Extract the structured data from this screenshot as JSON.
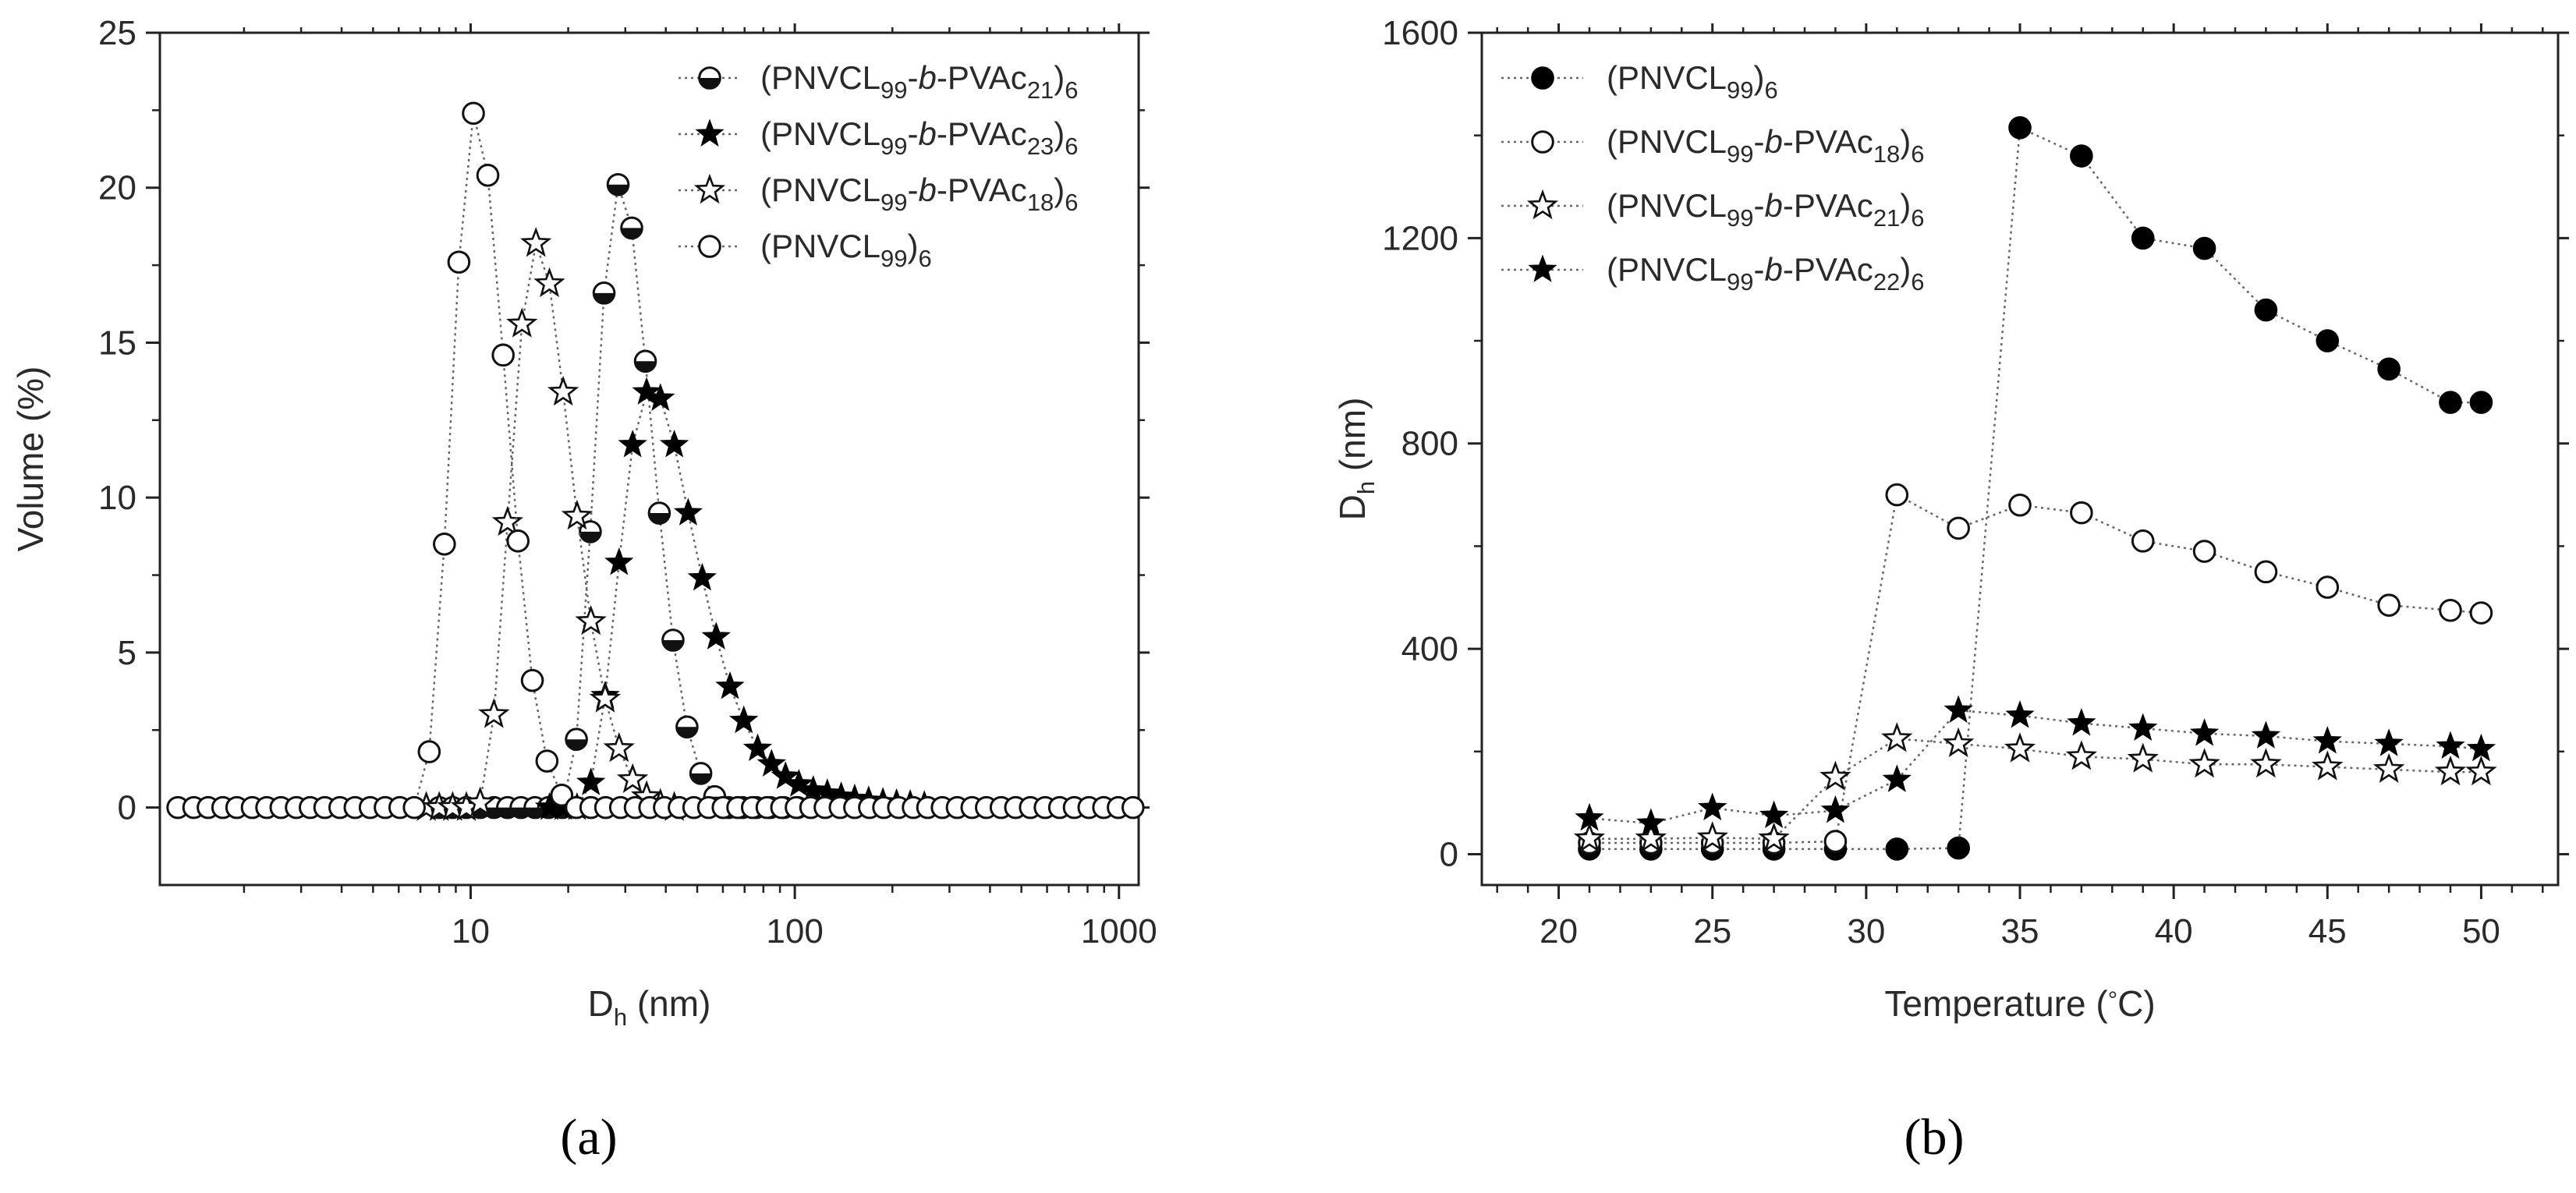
{
  "chart_data": [
    {
      "panel_label": "(a)",
      "type": "scatter",
      "line_style": "dotted",
      "x_scale": "log",
      "xlim": [
        1.1,
        1150
      ],
      "ylim": [
        -2.5,
        25
      ],
      "xlabel": {
        "main": "D",
        "sub": "h",
        "rest": " (nm)"
      },
      "ylabel": "Volume (%)",
      "x_ticks": [
        10,
        100,
        1000
      ],
      "x_tick_labels": [
        "10",
        "100",
        "1000"
      ],
      "y_ticks": [
        0,
        5,
        10,
        15,
        20,
        25
      ],
      "y_tick_labels": [
        "0",
        "5",
        "10",
        "15",
        "20",
        "25"
      ],
      "legend_position": "top-right",
      "series": [
        {
          "name": "(PNVCL99-b-PVAc21)6",
          "legend": {
            "a": "(PNVCL",
            "b": "99",
            "c": "-",
            "d": "b",
            "e": "-PVAc",
            "f": "21",
            "g": ")",
            "h": "6"
          },
          "marker": "half-filled-circle",
          "points": [
            [
              8,
              0
            ],
            [
              8.8,
              0
            ],
            [
              9.7,
              0
            ],
            [
              10.7,
              0
            ],
            [
              11.8,
              0
            ],
            [
              13,
              0
            ],
            [
              14.3,
              0
            ],
            [
              15.8,
              0
            ],
            [
              17.4,
              0
            ],
            [
              19.2,
              0
            ],
            [
              21.2,
              2.2
            ],
            [
              23.4,
              8.9
            ],
            [
              25.8,
              16.6
            ],
            [
              28.5,
              20.1
            ],
            [
              31.4,
              18.7
            ],
            [
              34.6,
              14.4
            ],
            [
              38.2,
              9.5
            ],
            [
              42.1,
              5.4
            ],
            [
              46.5,
              2.6
            ],
            [
              51.3,
              1.1
            ],
            [
              56.6,
              0.35
            ],
            [
              62.4,
              0
            ],
            [
              68.9,
              0
            ],
            [
              76,
              0
            ],
            [
              84,
              0
            ],
            [
              92.5,
              0
            ],
            [
              102,
              0
            ]
          ]
        },
        {
          "name": "(PNVCL99-b-PVAc23)6",
          "legend": {
            "a": "(PNVCL",
            "b": "99",
            "c": "-",
            "d": "b",
            "e": "-PVAc",
            "f": "23",
            "g": ")",
            "h": "6"
          },
          "marker": "filled-star",
          "points": [
            [
              17.5,
              0
            ],
            [
              19.3,
              0
            ],
            [
              21.3,
              0
            ],
            [
              23.5,
              0.8
            ],
            [
              26,
              3.6
            ],
            [
              28.7,
              7.9
            ],
            [
              31.6,
              11.7
            ],
            [
              34.9,
              13.4
            ],
            [
              38.5,
              13.2
            ],
            [
              42.5,
              11.7
            ],
            [
              46.9,
              9.5
            ],
            [
              51.8,
              7.4
            ],
            [
              57.2,
              5.5
            ],
            [
              63.1,
              3.9
            ],
            [
              69.6,
              2.8
            ],
            [
              76.8,
              1.9
            ],
            [
              84.8,
              1.4
            ],
            [
              93.6,
              1
            ],
            [
              103,
              0.75
            ],
            [
              114,
              0.55
            ],
            [
              126,
              0.45
            ],
            [
              139,
              0.35
            ],
            [
              153,
              0.28
            ],
            [
              169,
              0.22
            ],
            [
              187,
              0.17
            ],
            [
              206,
              0.13
            ],
            [
              227,
              0.1
            ],
            [
              251,
              0.07
            ]
          ]
        },
        {
          "name": "(PNVCL99-b-PVAc18)6",
          "legend": {
            "a": "(PNVCL",
            "b": "99",
            "c": "-",
            "d": "b",
            "e": "-PVAc",
            "f": "18",
            "g": ")",
            "h": "6"
          },
          "marker": "open-star",
          "points": [
            [
              7.3,
              0
            ],
            [
              8,
              0
            ],
            [
              8.8,
              0
            ],
            [
              9.7,
              0
            ],
            [
              10.7,
              0.15
            ],
            [
              11.8,
              3
            ],
            [
              13,
              9.2
            ],
            [
              14.4,
              15.6
            ],
            [
              15.9,
              18.2
            ],
            [
              17.5,
              16.9
            ],
            [
              19.3,
              13.4
            ],
            [
              21.3,
              9.4
            ],
            [
              23.5,
              6
            ],
            [
              26,
              3.5
            ],
            [
              28.7,
              1.9
            ],
            [
              31.6,
              0.9
            ],
            [
              34.9,
              0.35
            ],
            [
              38.5,
              0.1
            ],
            [
              42.5,
              0
            ]
          ]
        },
        {
          "name": "(PNVCL99)6",
          "legend": {
            "a": "(PNVCL",
            "b": "99",
            "c": ")",
            "d": "",
            "e": "",
            "f": "",
            "g": "",
            "h": "6"
          },
          "marker": "open-circle",
          "points": [
            [
              1.25,
              0
            ],
            [
              1.4,
              0
            ],
            [
              1.55,
              0
            ],
            [
              1.72,
              0
            ],
            [
              1.9,
              0
            ],
            [
              2.12,
              0
            ],
            [
              2.35,
              0
            ],
            [
              2.6,
              0
            ],
            [
              2.9,
              0
            ],
            [
              3.2,
              0
            ],
            [
              3.55,
              0
            ],
            [
              3.95,
              0
            ],
            [
              4.4,
              0
            ],
            [
              4.9,
              0
            ],
            [
              5.45,
              0
            ],
            [
              6.05,
              0
            ],
            [
              6.7,
              0
            ],
            [
              7.45,
              1.8
            ],
            [
              8.3,
              8.5
            ],
            [
              9.2,
              17.6
            ],
            [
              10.2,
              22.4
            ],
            [
              11.3,
              20.4
            ],
            [
              12.6,
              14.6
            ],
            [
              14,
              8.6
            ],
            [
              15.5,
              4.1
            ],
            [
              17.2,
              1.5
            ],
            [
              19.1,
              0.4
            ],
            [
              21.2,
              0
            ],
            [
              23.5,
              0
            ],
            [
              26.1,
              0
            ],
            [
              29,
              0
            ],
            [
              32.2,
              0
            ],
            [
              35.7,
              0
            ],
            [
              39.6,
              0
            ],
            [
              44,
              0
            ],
            [
              48.8,
              0
            ],
            [
              54.2,
              0
            ],
            [
              60.1,
              0
            ],
            [
              66.7,
              0
            ],
            [
              74,
              0
            ],
            [
              82.1,
              0
            ],
            [
              91.1,
              0
            ],
            [
              101,
              0
            ],
            [
              112,
              0
            ],
            [
              124,
              0
            ],
            [
              138,
              0
            ],
            [
              153,
              0
            ],
            [
              170,
              0
            ],
            [
              188,
              0
            ],
            [
              209,
              0
            ],
            [
              232,
              0
            ],
            [
              257,
              0
            ],
            [
              285,
              0
            ],
            [
              317,
              0
            ],
            [
              352,
              0
            ],
            [
              390,
              0
            ],
            [
              433,
              0
            ],
            [
              480,
              0
            ],
            [
              533,
              0
            ],
            [
              592,
              0
            ],
            [
              656,
              0
            ],
            [
              728,
              0
            ],
            [
              808,
              0
            ],
            [
              897,
              0
            ],
            [
              995,
              0
            ],
            [
              1105,
              0
            ]
          ]
        }
      ]
    },
    {
      "panel_label": "(b)",
      "type": "scatter",
      "line_style": "dotted",
      "x_scale": "linear",
      "xlim": [
        17.5,
        52.5
      ],
      "ylim": [
        -60,
        1600
      ],
      "xlabel": {
        "main": "Temperature (",
        "degree": "°",
        "rest": "C)"
      },
      "ylabel": {
        "main": "D",
        "sub": "h",
        "rest": " (nm)"
      },
      "x_ticks": [
        20,
        25,
        30,
        35,
        40,
        45,
        50
      ],
      "x_tick_labels": [
        "20",
        "25",
        "30",
        "35",
        "40",
        "45",
        "50"
      ],
      "y_ticks": [
        0,
        400,
        800,
        1200,
        1600
      ],
      "y_tick_labels": [
        "0",
        "400",
        "800",
        "1200",
        "1600"
      ],
      "legend_position": "top-left",
      "series": [
        {
          "name": "(PNVCL99)6",
          "legend": {
            "a": "(PNVCL",
            "b": "99",
            "c": ")",
            "d": "",
            "e": "",
            "f": "",
            "g": "",
            "h": "6"
          },
          "marker": "filled-circle",
          "points": [
            [
              21,
              10
            ],
            [
              23,
              10
            ],
            [
              25,
              10
            ],
            [
              27,
              10
            ],
            [
              29,
              10
            ],
            [
              31,
              10
            ],
            [
              33,
              12
            ],
            [
              35,
              1415
            ],
            [
              37,
              1360
            ],
            [
              39,
              1200
            ],
            [
              41,
              1180
            ],
            [
              43,
              1060
            ],
            [
              45,
              1000
            ],
            [
              47,
              945
            ],
            [
              49,
              880
            ],
            [
              50,
              880
            ]
          ]
        },
        {
          "name": "(PNVCL99-b-PVAc18)6",
          "legend": {
            "a": "(PNVCL",
            "b": "99",
            "c": "-",
            "d": "b",
            "e": "-PVAc",
            "f": "18",
            "g": ")",
            "h": "6"
          },
          "marker": "open-circle",
          "points": [
            [
              21,
              22
            ],
            [
              23,
              22
            ],
            [
              25,
              22
            ],
            [
              27,
              22
            ],
            [
              29,
              25
            ],
            [
              31,
              700
            ],
            [
              33,
              635
            ],
            [
              35,
              680
            ],
            [
              37,
              665
            ],
            [
              39,
              610
            ],
            [
              41,
              590
            ],
            [
              43,
              550
            ],
            [
              45,
              520
            ],
            [
              47,
              485
            ],
            [
              49,
              475
            ],
            [
              50,
              470
            ]
          ]
        },
        {
          "name": "(PNVCL99-b-PVAc21)6",
          "legend": {
            "a": "(PNVCL",
            "b": "99",
            "c": "-",
            "d": "b",
            "e": "-PVAc",
            "f": "21",
            "g": ")",
            "h": "6"
          },
          "marker": "open-star",
          "points": [
            [
              21,
              30
            ],
            [
              23,
              30
            ],
            [
              25,
              32
            ],
            [
              27,
              30
            ],
            [
              29,
              150
            ],
            [
              31,
              225
            ],
            [
              33,
              215
            ],
            [
              35,
              205
            ],
            [
              37,
              190
            ],
            [
              39,
              185
            ],
            [
              41,
              175
            ],
            [
              43,
              175
            ],
            [
              45,
              170
            ],
            [
              47,
              165
            ],
            [
              49,
              160
            ],
            [
              50,
              160
            ]
          ]
        },
        {
          "name": "(PNVCL99-b-PVAc22)6",
          "legend": {
            "a": "(PNVCL",
            "b": "99",
            "c": "-",
            "d": "b",
            "e": "-PVAc",
            "f": "22",
            "g": ")",
            "h": "6"
          },
          "marker": "filled-star",
          "points": [
            [
              21,
              70
            ],
            [
              23,
              60
            ],
            [
              25,
              90
            ],
            [
              27,
              75
            ],
            [
              29,
              85
            ],
            [
              31,
              145
            ],
            [
              33,
              280
            ],
            [
              35,
              270
            ],
            [
              37,
              255
            ],
            [
              39,
              245
            ],
            [
              41,
              235
            ],
            [
              43,
              230
            ],
            [
              45,
              220
            ],
            [
              47,
              215
            ],
            [
              49,
              210
            ],
            [
              50,
              205
            ]
          ]
        }
      ]
    }
  ]
}
